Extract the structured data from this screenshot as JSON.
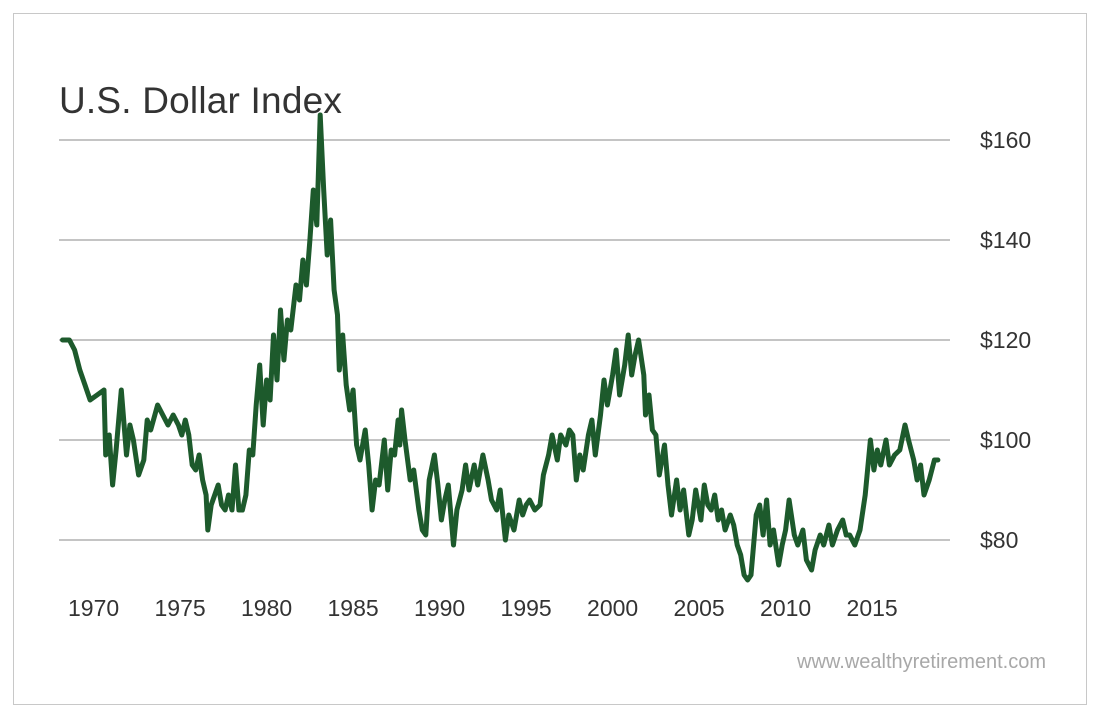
{
  "title": "U.S. Dollar Index",
  "watermark": "www.wealthyretirement.com",
  "colors": {
    "line": "#1d5a2c",
    "grid": "#8a8a8a",
    "text": "#333333",
    "frame": "#c8c8c8"
  },
  "chart_data": {
    "type": "line",
    "title": "U.S. Dollar Index",
    "xlabel": "",
    "ylabel": "",
    "xlim": [
      1968.0,
      2019.5
    ],
    "ylim": [
      70,
      168
    ],
    "x_ticks": [
      1970,
      1975,
      1980,
      1985,
      1990,
      1995,
      2000,
      2005,
      2010,
      2015
    ],
    "x_tick_labels": [
      "1970",
      "1975",
      "1980",
      "1985",
      "1990",
      "1995",
      "2000",
      "2005",
      "2010",
      "2015"
    ],
    "y_ticks": [
      80,
      100,
      120,
      140,
      160
    ],
    "y_tick_labels": [
      "$80",
      "$100",
      "$120",
      "$140",
      "$160"
    ],
    "grid": "horizontal",
    "y_axis_side": "right",
    "series": [
      {
        "values": [
          [
            1968.2,
            120
          ],
          [
            1968.6,
            120
          ],
          [
            1968.9,
            118
          ],
          [
            1969.2,
            114
          ],
          [
            1969.5,
            111
          ],
          [
            1969.8,
            108
          ],
          [
            1970.2,
            109
          ],
          [
            1970.6,
            110
          ],
          [
            1970.7,
            97
          ],
          [
            1970.9,
            101
          ],
          [
            1971.1,
            91
          ],
          [
            1971.3,
            98
          ],
          [
            1971.6,
            110
          ],
          [
            1971.9,
            97
          ],
          [
            1972.1,
            103
          ],
          [
            1972.3,
            100
          ],
          [
            1972.6,
            93
          ],
          [
            1972.9,
            96
          ],
          [
            1973.1,
            104
          ],
          [
            1973.3,
            102
          ],
          [
            1973.7,
            107
          ],
          [
            1974.0,
            105
          ],
          [
            1974.3,
            103
          ],
          [
            1974.6,
            105
          ],
          [
            1974.9,
            103
          ],
          [
            1975.1,
            101
          ],
          [
            1975.3,
            104
          ],
          [
            1975.5,
            101
          ],
          [
            1975.7,
            95
          ],
          [
            1975.9,
            94
          ],
          [
            1976.1,
            97
          ],
          [
            1976.3,
            92
          ],
          [
            1976.5,
            89
          ],
          [
            1976.6,
            82
          ],
          [
            1976.8,
            87
          ],
          [
            1977.0,
            89
          ],
          [
            1977.2,
            91
          ],
          [
            1977.4,
            87
          ],
          [
            1977.6,
            86
          ],
          [
            1977.8,
            89
          ],
          [
            1978.0,
            86
          ],
          [
            1978.2,
            95
          ],
          [
            1978.4,
            86
          ],
          [
            1978.6,
            86
          ],
          [
            1978.8,
            89
          ],
          [
            1979.0,
            98
          ],
          [
            1979.2,
            97
          ],
          [
            1979.4,
            107
          ],
          [
            1979.6,
            115
          ],
          [
            1979.8,
            103
          ],
          [
            1980.0,
            112
          ],
          [
            1980.2,
            108
          ],
          [
            1980.4,
            121
          ],
          [
            1980.6,
            112
          ],
          [
            1980.8,
            126
          ],
          [
            1981.0,
            116
          ],
          [
            1981.2,
            124
          ],
          [
            1981.4,
            122
          ],
          [
            1981.7,
            131
          ],
          [
            1981.9,
            128
          ],
          [
            1982.1,
            136
          ],
          [
            1982.3,
            131
          ],
          [
            1982.5,
            140
          ],
          [
            1982.7,
            150
          ],
          [
            1982.9,
            143
          ],
          [
            1983.1,
            165
          ],
          [
            1983.3,
            150
          ],
          [
            1983.5,
            137
          ],
          [
            1983.7,
            144
          ],
          [
            1983.9,
            130
          ],
          [
            1984.1,
            125
          ],
          [
            1984.2,
            114
          ],
          [
            1984.4,
            121
          ],
          [
            1984.6,
            111
          ],
          [
            1984.8,
            106
          ],
          [
            1985.0,
            110
          ],
          [
            1985.2,
            99
          ],
          [
            1985.4,
            96
          ],
          [
            1985.7,
            102
          ],
          [
            1985.9,
            95
          ],
          [
            1986.1,
            86
          ],
          [
            1986.3,
            92
          ],
          [
            1986.5,
            91
          ],
          [
            1986.8,
            100
          ],
          [
            1987.0,
            90
          ],
          [
            1987.2,
            98
          ],
          [
            1987.4,
            97
          ],
          [
            1987.6,
            104
          ],
          [
            1987.7,
            99
          ],
          [
            1987.8,
            106
          ],
          [
            1988.0,
            100
          ],
          [
            1988.3,
            92
          ],
          [
            1988.5,
            94
          ],
          [
            1988.8,
            86
          ],
          [
            1989.0,
            82
          ],
          [
            1989.2,
            81
          ],
          [
            1989.4,
            92
          ],
          [
            1989.7,
            97
          ],
          [
            1989.9,
            91
          ],
          [
            1990.1,
            84
          ],
          [
            1990.3,
            88
          ],
          [
            1990.5,
            91
          ],
          [
            1990.8,
            79
          ],
          [
            1991.0,
            86
          ],
          [
            1991.3,
            90
          ],
          [
            1991.5,
            95
          ],
          [
            1991.7,
            90
          ],
          [
            1992.0,
            95
          ],
          [
            1992.2,
            91
          ],
          [
            1992.5,
            97
          ],
          [
            1992.8,
            92
          ],
          [
            1993.0,
            88
          ],
          [
            1993.3,
            86
          ],
          [
            1993.5,
            90
          ],
          [
            1993.8,
            80
          ],
          [
            1994.0,
            85
          ],
          [
            1994.3,
            82
          ],
          [
            1994.6,
            88
          ],
          [
            1994.8,
            85
          ],
          [
            1995.0,
            87
          ],
          [
            1995.2,
            88
          ],
          [
            1995.5,
            86
          ],
          [
            1995.8,
            87
          ],
          [
            1996.0,
            93
          ],
          [
            1996.3,
            97
          ],
          [
            1996.5,
            101
          ],
          [
            1996.8,
            96
          ],
          [
            1997.0,
            101
          ],
          [
            1997.3,
            99
          ],
          [
            1997.5,
            102
          ],
          [
            1997.7,
            101
          ],
          [
            1997.9,
            92
          ],
          [
            1998.1,
            97
          ],
          [
            1998.3,
            94
          ],
          [
            1998.6,
            101
          ],
          [
            1998.8,
            104
          ],
          [
            1999.0,
            97
          ],
          [
            1999.3,
            105
          ],
          [
            1999.5,
            112
          ],
          [
            1999.7,
            107
          ],
          [
            2000.0,
            113
          ],
          [
            2000.2,
            118
          ],
          [
            2000.4,
            109
          ],
          [
            2000.7,
            115
          ],
          [
            2000.9,
            121
          ],
          [
            2001.1,
            113
          ],
          [
            2001.3,
            117
          ],
          [
            2001.5,
            120
          ],
          [
            2001.8,
            113
          ],
          [
            2001.9,
            105
          ],
          [
            2002.1,
            109
          ],
          [
            2002.3,
            102
          ],
          [
            2002.5,
            101
          ],
          [
            2002.7,
            93
          ],
          [
            2003.0,
            99
          ],
          [
            2003.2,
            91
          ],
          [
            2003.4,
            85
          ],
          [
            2003.7,
            92
          ],
          [
            2003.9,
            86
          ],
          [
            2004.1,
            90
          ],
          [
            2004.4,
            81
          ],
          [
            2004.6,
            84
          ],
          [
            2004.8,
            90
          ],
          [
            2005.1,
            84
          ],
          [
            2005.3,
            91
          ],
          [
            2005.5,
            87
          ],
          [
            2005.7,
            86
          ],
          [
            2005.9,
            89
          ],
          [
            2006.1,
            84
          ],
          [
            2006.3,
            86
          ],
          [
            2006.5,
            82
          ],
          [
            2006.8,
            85
          ],
          [
            2007.0,
            83
          ],
          [
            2007.2,
            79
          ],
          [
            2007.4,
            77
          ],
          [
            2007.6,
            73
          ],
          [
            2007.8,
            72
          ],
          [
            2008.0,
            73
          ],
          [
            2008.3,
            85
          ],
          [
            2008.5,
            87
          ],
          [
            2008.7,
            81
          ],
          [
            2008.9,
            88
          ],
          [
            2009.1,
            79
          ],
          [
            2009.3,
            82
          ],
          [
            2009.6,
            75
          ],
          [
            2009.8,
            79
          ],
          [
            2010.0,
            82
          ],
          [
            2010.2,
            88
          ],
          [
            2010.5,
            81
          ],
          [
            2010.7,
            79
          ],
          [
            2011.0,
            82
          ],
          [
            2011.2,
            76
          ],
          [
            2011.5,
            74
          ],
          [
            2011.7,
            78
          ],
          [
            2012.0,
            81
          ],
          [
            2012.2,
            79
          ],
          [
            2012.5,
            83
          ],
          [
            2012.7,
            79
          ],
          [
            2013.0,
            82
          ],
          [
            2013.3,
            84
          ],
          [
            2013.5,
            81
          ],
          [
            2013.7,
            81
          ],
          [
            2014.0,
            79
          ],
          [
            2014.3,
            82
          ],
          [
            2014.6,
            89
          ],
          [
            2014.9,
            100
          ],
          [
            2015.1,
            94
          ],
          [
            2015.3,
            98
          ],
          [
            2015.5,
            95
          ],
          [
            2015.8,
            100
          ],
          [
            2016.0,
            95
          ],
          [
            2016.3,
            97
          ],
          [
            2016.6,
            98
          ],
          [
            2016.9,
            103
          ],
          [
            2017.1,
            100
          ],
          [
            2017.4,
            96
          ],
          [
            2017.6,
            92
          ],
          [
            2017.8,
            95
          ],
          [
            2018.0,
            89
          ],
          [
            2018.3,
            92
          ],
          [
            2018.6,
            96
          ],
          [
            2018.8,
            96
          ]
        ]
      }
    ]
  }
}
